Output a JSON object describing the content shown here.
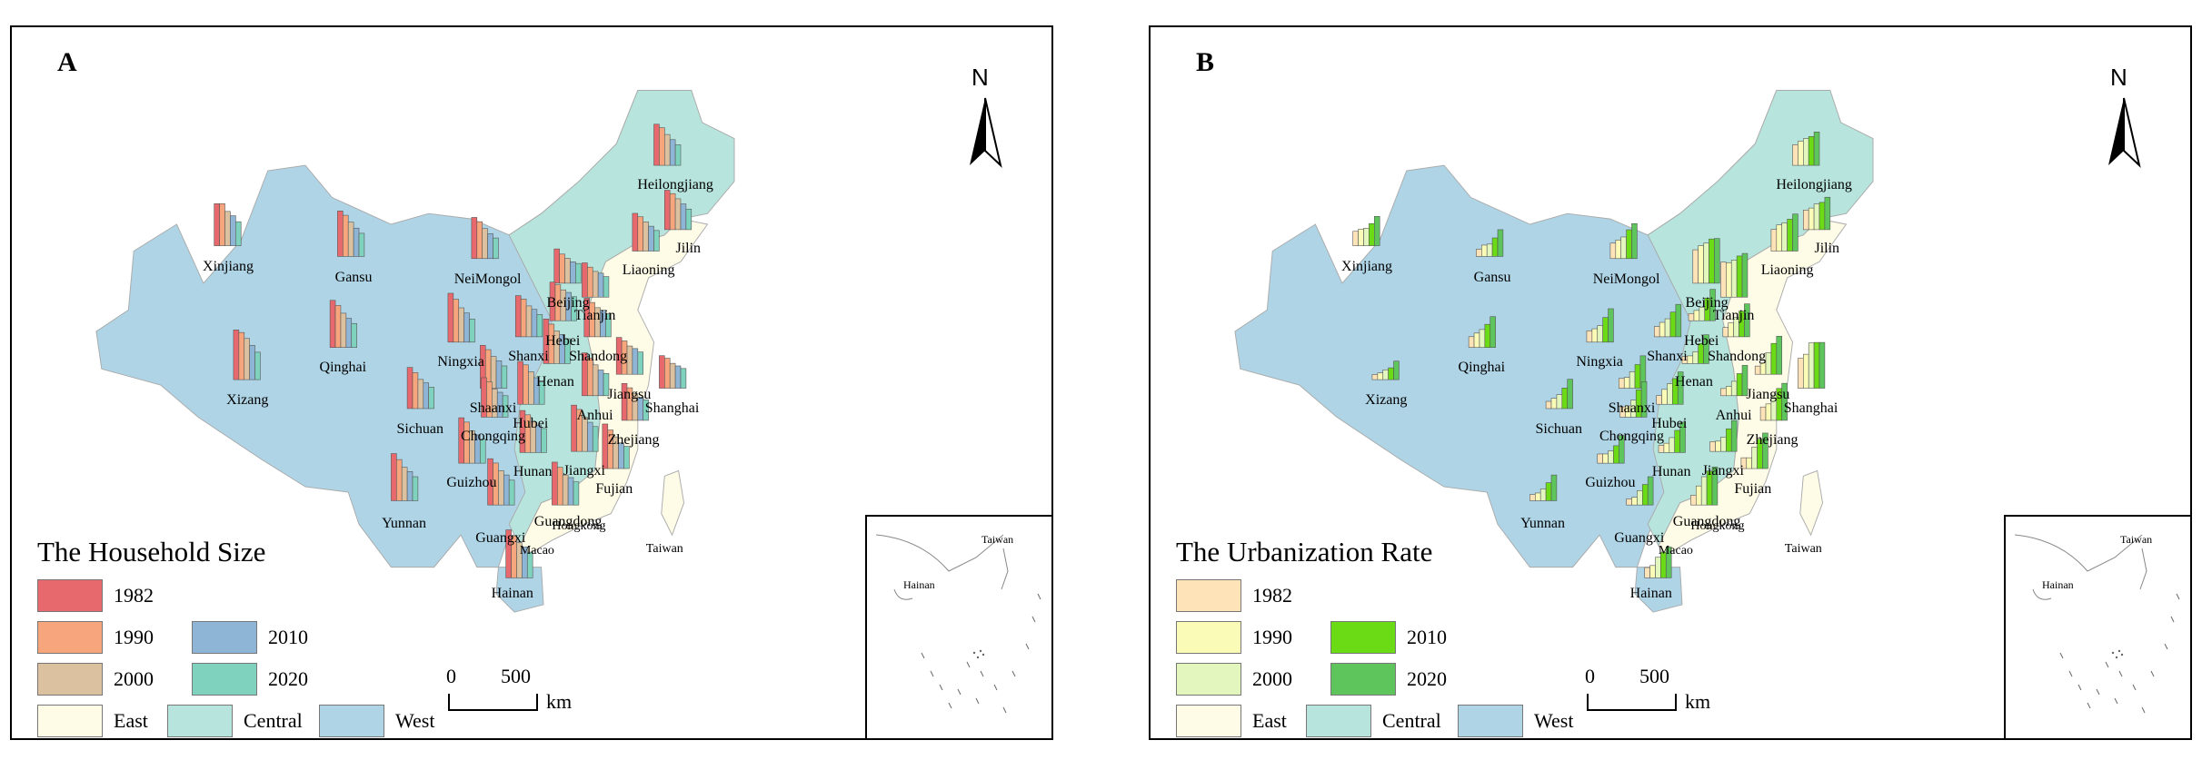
{
  "panels": [
    {
      "label": "A",
      "legend_title": "The Household Size",
      "years": [
        "1982",
        "1990",
        "2000",
        "2010",
        "2020"
      ],
      "year_colors": [
        "#e8696d",
        "#f7a57c",
        "#dcc1a0",
        "#8eb5d5",
        "#7fd2bd"
      ]
    },
    {
      "label": "B",
      "legend_title": "The Urbanization Rate",
      "years": [
        "1982",
        "1990",
        "2000",
        "2010",
        "2020"
      ],
      "year_colors": [
        "#fde3b7",
        "#fbfbb8",
        "#e2f6be",
        "#6adb14",
        "#5ec45c"
      ]
    }
  ],
  "regions": [
    {
      "name": "East",
      "color": "#fefbe6"
    },
    {
      "name": "Central",
      "color": "#b7e5dd"
    },
    {
      "name": "West",
      "color": "#aed4e6"
    }
  ],
  "north_label": "N",
  "scale": {
    "zero": "0",
    "max": "500",
    "unit": "km"
  },
  "special_labels": {
    "hongkong": "Hongkong",
    "macao": "Macao",
    "taiwan": "Taiwan",
    "hainan": "Hainan"
  },
  "provinces": [
    {
      "name": "Heilongjiang"
    },
    {
      "name": "Jilin"
    },
    {
      "name": "Liaoning"
    },
    {
      "name": "Xinjiang"
    },
    {
      "name": "Gansu"
    },
    {
      "name": "NeiMongol"
    },
    {
      "name": "Beijing"
    },
    {
      "name": "Tianjin"
    },
    {
      "name": "Hebei"
    },
    {
      "name": "Shanxi"
    },
    {
      "name": "Shandong"
    },
    {
      "name": "Ningxia"
    },
    {
      "name": "Qinghai"
    },
    {
      "name": "Henan"
    },
    {
      "name": "Jiangsu"
    },
    {
      "name": "Shaanxi"
    },
    {
      "name": "Shanghai"
    },
    {
      "name": "Xizang"
    },
    {
      "name": "Anhui"
    },
    {
      "name": "Hubei"
    },
    {
      "name": "Sichuan"
    },
    {
      "name": "Chongqing"
    },
    {
      "name": "Zhejiang"
    },
    {
      "name": "Hunan"
    },
    {
      "name": "Jiangxi"
    },
    {
      "name": "Guizhou"
    },
    {
      "name": "Fujian"
    },
    {
      "name": "Yunnan"
    },
    {
      "name": "Guangxi"
    },
    {
      "name": "Guangdong"
    },
    {
      "name": "Hainan"
    }
  ],
  "household_size": {
    "Heilongjiang": [
      4.8,
      4.4,
      3.6,
      3.0,
      2.4
    ],
    "Jilin": [
      4.6,
      4.2,
      3.6,
      3.0,
      2.4
    ],
    "Liaoning": [
      4.4,
      4.0,
      3.4,
      2.9,
      2.4
    ],
    "Xinjiang": [
      4.9,
      4.9,
      4.0,
      3.5,
      2.8
    ],
    "Gansu": [
      5.3,
      4.8,
      4.0,
      3.3,
      2.7
    ],
    "NeiMongol": [
      4.8,
      4.3,
      3.5,
      2.9,
      2.4
    ],
    "Beijing": [
      4.0,
      3.4,
      2.9,
      2.5,
      2.3
    ],
    "Tianjin": [
      4.0,
      3.5,
      3.0,
      2.8,
      2.4
    ],
    "Hebei": [
      4.5,
      4.2,
      3.6,
      3.3,
      2.8
    ],
    "Shanxi": [
      4.8,
      4.4,
      3.6,
      3.2,
      2.6
    ],
    "Shandong": [
      4.5,
      4.0,
      3.4,
      3.1,
      2.7
    ],
    "Ningxia": [
      5.7,
      5.0,
      4.0,
      3.4,
      2.7
    ],
    "Qinghai": [
      5.5,
      4.9,
      4.0,
      3.4,
      2.8
    ],
    "Henan": [
      5.2,
      4.6,
      3.8,
      3.4,
      2.9
    ],
    "Jiangsu": [
      4.3,
      3.9,
      3.3,
      3.0,
      2.6
    ],
    "Shaanxi": [
      5.0,
      4.5,
      3.7,
      3.2,
      2.6
    ],
    "Shanghai": [
      3.8,
      3.5,
      2.9,
      2.6,
      2.3
    ],
    "Xizang": [
      5.8,
      5.5,
      4.8,
      4.0,
      3.2
    ],
    "Anhui": [
      5.0,
      4.4,
      3.6,
      3.0,
      2.6
    ],
    "Hubei": [
      5.0,
      4.6,
      3.8,
      3.1,
      2.6
    ],
    "Sichuan": [
      4.8,
      4.2,
      3.4,
      3.0,
      2.5
    ],
    "Chongqing": [
      4.6,
      4.1,
      3.3,
      2.9,
      2.5
    ],
    "Zhejiang": [
      4.3,
      3.8,
      3.1,
      2.7,
      2.4
    ],
    "Hunan": [
      4.9,
      4.4,
      3.6,
      3.2,
      2.8
    ],
    "Jiangxi": [
      5.4,
      4.9,
      4.0,
      3.4,
      2.9
    ],
    "Guizhou": [
      5.3,
      4.8,
      3.8,
      3.3,
      2.8
    ],
    "Fujian": [
      5.2,
      4.5,
      3.7,
      3.0,
      2.6
    ],
    "Yunnan": [
      5.5,
      4.8,
      3.9,
      3.4,
      2.8
    ],
    "Guangxi": [
      5.4,
      4.9,
      4.0,
      3.5,
      2.9
    ],
    "Guangdong": [
      5.0,
      4.4,
      3.5,
      3.2,
      2.7
    ],
    "Hainan": [
      5.6,
      4.9,
      4.1,
      3.6,
      3.0
    ]
  },
  "urbanization_rate": {
    "Heilongjiang": [
      40,
      47,
      52,
      56,
      65
    ],
    "Jilin": [
      38,
      42,
      50,
      53,
      63
    ],
    "Liaoning": [
      42,
      51,
      55,
      62,
      72
    ],
    "Xinjiang": [
      28,
      32,
      34,
      43,
      57
    ],
    "Gansu": [
      14,
      22,
      24,
      36,
      52
    ],
    "NeiMongol": [
      30,
      36,
      42,
      56,
      68
    ],
    "Beijing": [
      65,
      73,
      78,
      86,
      87
    ],
    "Tianjin": [
      68,
      67,
      72,
      80,
      85
    ],
    "Hebei": [
      14,
      20,
      26,
      44,
      61
    ],
    "Shanxi": [
      20,
      28,
      35,
      48,
      63
    ],
    "Shandong": [
      18,
      27,
      38,
      50,
      64
    ],
    "Ningxia": [
      22,
      26,
      32,
      48,
      65
    ],
    "Qinghai": [
      21,
      28,
      35,
      45,
      60
    ],
    "Henan": [
      14,
      15,
      23,
      39,
      56
    ],
    "Jiangsu": [
      16,
      22,
      42,
      60,
      74
    ],
    "Shaanxi": [
      19,
      21,
      32,
      46,
      63
    ],
    "Shanghai": [
      58,
      66,
      88,
      89,
      89
    ],
    "Xizang": [
      10,
      13,
      19,
      23,
      36
    ],
    "Anhui": [
      14,
      18,
      28,
      43,
      59
    ],
    "Hubei": [
      17,
      29,
      40,
      50,
      63
    ],
    "Sichuan": [
      14,
      20,
      27,
      40,
      57
    ],
    "Chongqing": [
      20,
      22,
      33,
      53,
      69
    ],
    "Zhejiang": [
      26,
      32,
      49,
      62,
      72
    ],
    "Hunan": [
      14,
      18,
      29,
      43,
      59
    ],
    "Jiangxi": [
      19,
      20,
      28,
      44,
      60
    ],
    "Guizhou": [
      18,
      18,
      24,
      34,
      54
    ],
    "Fujian": [
      21,
      21,
      42,
      57,
      69
    ],
    "Yunnan": [
      12,
      15,
      23,
      35,
      50
    ],
    "Guangxi": [
      12,
      15,
      28,
      40,
      55
    ],
    "Guangdong": [
      19,
      37,
      55,
      66,
      74
    ],
    "Hainan": [
      20,
      24,
      40,
      50,
      60
    ]
  }
}
